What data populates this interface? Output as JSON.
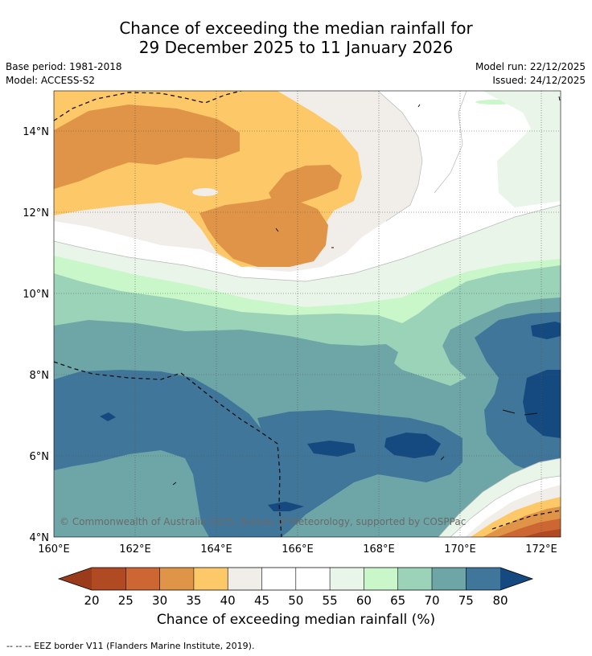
{
  "title": {
    "line1": "Chance of exceeding the median rainfall for",
    "line2": "29 December 2025 to 11 January 2026"
  },
  "meta": {
    "base_period": "Base period: 1981-2018",
    "model": "Model: ACCESS-S2",
    "model_run": "Model run: 22/12/2025",
    "issued": "Issued: 24/12/2025"
  },
  "map": {
    "lat_ticks": [
      "14°N",
      "12°N",
      "10°N",
      "8°N",
      "6°N",
      "4°N"
    ],
    "lon_ticks": [
      "160°E",
      "162°E",
      "164°E",
      "166°E",
      "168°E",
      "170°E",
      "172°E"
    ],
    "copyright": "© Commonwealth of Australia 2025, Bureau of Meteorology, supported by COSPPac"
  },
  "colorbar": {
    "title": "Chance of exceeding median rainfall (%)",
    "labels": [
      "20",
      "25",
      "30",
      "35",
      "40",
      "45",
      "50",
      "55",
      "60",
      "65",
      "70",
      "75",
      "80"
    ],
    "colors": {
      "below_20": "#9a3b1c",
      "c20_25": "#b04a22",
      "c25_30": "#cc6633",
      "c30_35": "#e09448",
      "c35_40": "#fdc868",
      "c40_45": "#f1ede8",
      "c45_50": "#ffffff",
      "c50_55": "#ffffff",
      "c55_60": "#e8f5e8",
      "c60_65": "#c9f7c9",
      "c65_70": "#9bd3b9",
      "c70_75": "#6ea6a8",
      "c75_80": "#3f7699",
      "above_80": "#154a80"
    }
  },
  "footer": {
    "legend": "-- -- -- EEZ border V11 (Flanders Marine Institute, 2019)."
  }
}
